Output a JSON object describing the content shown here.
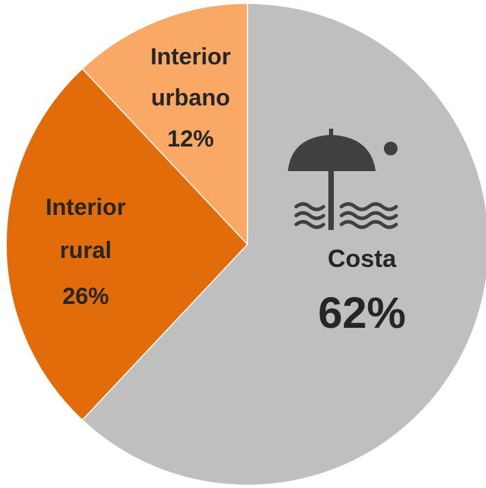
{
  "chart_data": {
    "type": "pie",
    "categories": [
      "Costa",
      "Interior rural",
      "Interior urbano"
    ],
    "values": [
      62,
      26,
      12
    ],
    "value_labels": [
      "62%",
      "26%",
      "12%"
    ],
    "colors": [
      "#bfbfbf",
      "#e36c0a",
      "#f9a865"
    ]
  }
}
